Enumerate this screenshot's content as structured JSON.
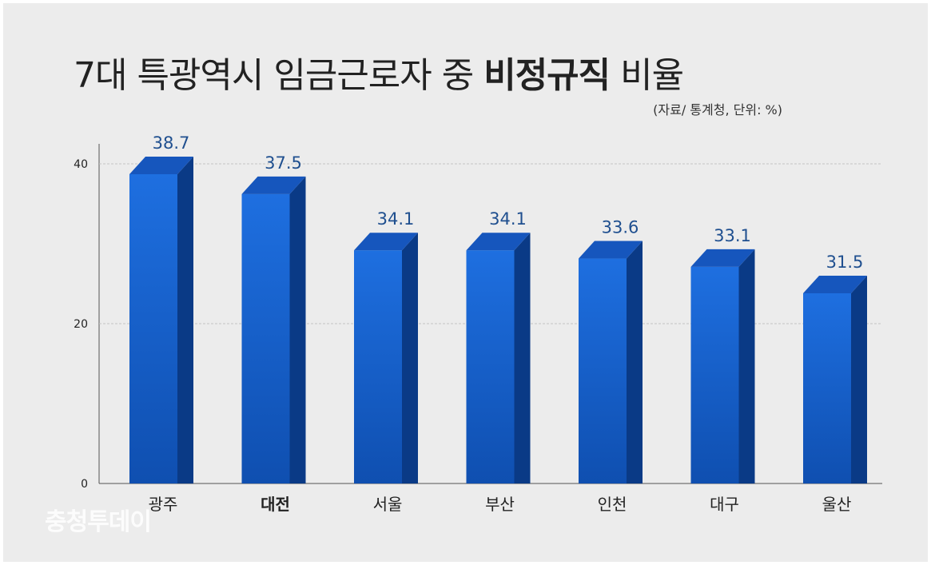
{
  "title": {
    "prefix": "7대 특광역시 임금근로자 중 ",
    "bold": "비정규직",
    "suffix": " 비율"
  },
  "source": "(자료/ 통계청, 단위: %)",
  "watermark": "충청투데이",
  "colors": {
    "bar_front_top": "#1e6fe0",
    "bar_front_bottom": "#0f4fb0",
    "bar_side": "#0a3a86",
    "bar_top": "#1656bd",
    "label": "#1f4f8f"
  },
  "chart_data": {
    "type": "bar",
    "categories": [
      "광주",
      "대전",
      "서울",
      "부산",
      "인천",
      "대구",
      "울산"
    ],
    "bold_categories": [
      "대전"
    ],
    "values": [
      38.7,
      37.5,
      34.1,
      34.1,
      33.6,
      33.1,
      31.5
    ],
    "labels": [
      "38.7",
      "37.5",
      "34.1",
      "34.1",
      "33.6",
      "33.1",
      "31.5"
    ],
    "yticks": [
      0,
      20,
      40
    ],
    "ylim": [
      0,
      40
    ],
    "title": "7대 특광역시 임금근로자 중 비정규직 비율",
    "xlabel": "",
    "ylabel": "",
    "grid": true
  }
}
